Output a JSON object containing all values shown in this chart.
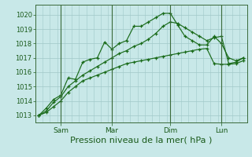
{
  "bg_color": "#c8e8e8",
  "grid_color": "#a0c8c8",
  "line_color": "#1a6b1a",
  "xlabel": "Pression niveau de la mer( hPa )",
  "xlabel_fontsize": 8,
  "ylim": [
    1012.5,
    1020.7
  ],
  "yticks": [
    1013,
    1014,
    1015,
    1016,
    1017,
    1018,
    1019,
    1020
  ],
  "ytick_fontsize": 6,
  "xtick_labels": [
    "Sam",
    "Mar",
    "Dim",
    "Lun"
  ],
  "xtick_fontsize": 6.5,
  "line1_y": [
    1013.0,
    1013.5,
    1014.1,
    1014.4,
    1015.6,
    1015.5,
    1016.7,
    1016.9,
    1017.0,
    1018.1,
    1017.6,
    1018.0,
    1018.2,
    1019.2,
    1019.2,
    1019.5,
    1019.8,
    1020.1,
    1020.1,
    1019.3,
    1018.5,
    1018.2,
    1017.9,
    1017.9,
    1018.5,
    1018.0,
    1017.0,
    1016.8,
    1017.0
  ],
  "line2_y": [
    1013.0,
    1013.2,
    1013.6,
    1014.0,
    1014.6,
    1015.0,
    1015.4,
    1015.6,
    1015.8,
    1016.0,
    1016.2,
    1016.4,
    1016.6,
    1016.7,
    1016.8,
    1016.9,
    1017.0,
    1017.1,
    1017.2,
    1017.3,
    1017.4,
    1017.5,
    1017.6,
    1017.65,
    1016.6,
    1016.55,
    1016.55,
    1016.6,
    1016.8
  ],
  "line3_y": [
    1013.0,
    1013.3,
    1013.9,
    1014.3,
    1015.0,
    1015.4,
    1015.8,
    1016.1,
    1016.4,
    1016.7,
    1017.0,
    1017.3,
    1017.5,
    1017.8,
    1018.0,
    1018.3,
    1018.7,
    1019.2,
    1019.5,
    1019.4,
    1019.1,
    1018.8,
    1018.5,
    1018.2,
    1018.4,
    1018.5,
    1016.6,
    1016.7,
    1017.0
  ],
  "num_points": 29,
  "vline_positions": [
    3,
    10,
    18,
    25
  ],
  "xtick_positions": [
    3,
    10,
    18,
    25
  ]
}
